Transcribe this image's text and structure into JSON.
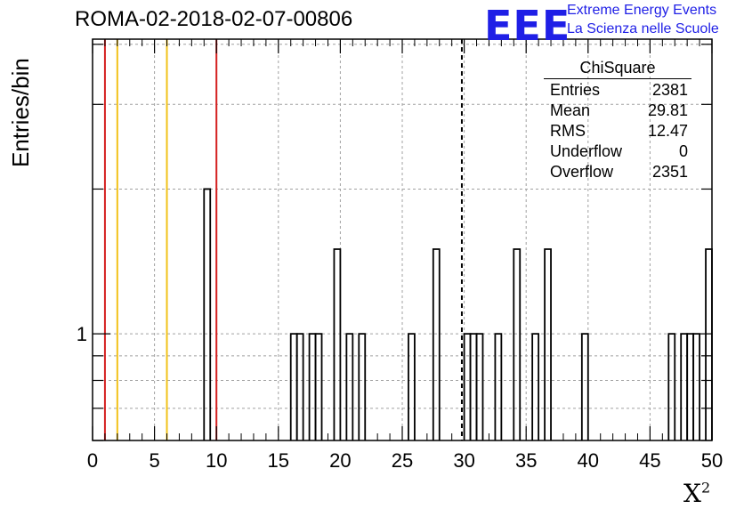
{
  "header": {
    "run_title": "ROMA-02-2018-02-07-00806",
    "logo_mark": "EEE",
    "logo_line1": "Extreme Energy Events",
    "logo_line2": "La Scienza nelle Scuole"
  },
  "axes": {
    "ylabel": "Entries/bin",
    "xlabel_base": "X",
    "xlabel_sup": "2"
  },
  "stats_box": {
    "title": "ChiSquare",
    "rows": [
      {
        "label": "Entries",
        "value": "2381"
      },
      {
        "label": "Mean",
        "value": "29.81"
      },
      {
        "label": "RMS",
        "value": "12.47"
      },
      {
        "label": "Underflow",
        "value": "0"
      },
      {
        "label": "Overflow",
        "value": "2351"
      }
    ]
  },
  "colors": {
    "red_line": "#d42020",
    "yellow_line": "#f2c21a",
    "logo_blue": "#1f1fe6",
    "grid": "#a0a0a0"
  },
  "chart_data": {
    "type": "histogram",
    "title": "ROMA-02-2018-02-07-00806",
    "xlabel": "X²",
    "ylabel": "Entries/bin",
    "xlim": [
      0,
      50
    ],
    "y_scale": "log",
    "ylim": [
      0.6,
      4.1
    ],
    "bin_width": 0.5,
    "grid": true,
    "x_ticks": [
      0,
      5,
      10,
      15,
      20,
      25,
      30,
      35,
      40,
      45,
      50
    ],
    "y_tick_labels": [
      {
        "value": 1,
        "label": "1"
      }
    ],
    "bins": [
      {
        "x": 9.0,
        "count": 2
      },
      {
        "x": 16.0,
        "count": 1
      },
      {
        "x": 16.5,
        "count": 1
      },
      {
        "x": 17.5,
        "count": 1
      },
      {
        "x": 18.0,
        "count": 1
      },
      {
        "x": 19.5,
        "count": 1.5
      },
      {
        "x": 20.5,
        "count": 1
      },
      {
        "x": 21.5,
        "count": 1
      },
      {
        "x": 25.5,
        "count": 1
      },
      {
        "x": 27.5,
        "count": 1.5
      },
      {
        "x": 30.0,
        "count": 1
      },
      {
        "x": 30.5,
        "count": 1
      },
      {
        "x": 31.0,
        "count": 1
      },
      {
        "x": 32.5,
        "count": 1
      },
      {
        "x": 34.0,
        "count": 1.5
      },
      {
        "x": 35.5,
        "count": 1
      },
      {
        "x": 36.5,
        "count": 1.5
      },
      {
        "x": 39.5,
        "count": 1
      },
      {
        "x": 46.5,
        "count": 1
      },
      {
        "x": 47.5,
        "count": 1
      },
      {
        "x": 48.0,
        "count": 1
      },
      {
        "x": 48.5,
        "count": 1
      },
      {
        "x": 49.5,
        "count": 1.5
      }
    ],
    "vertical_lines": [
      {
        "x": 1,
        "color": "#d42020",
        "style": "solid"
      },
      {
        "x": 2,
        "color": "#f2c21a",
        "style": "solid"
      },
      {
        "x": 6,
        "color": "#f2c21a",
        "style": "solid"
      },
      {
        "x": 10,
        "color": "#d42020",
        "style": "solid"
      },
      {
        "x": 29.81,
        "color": "#000000",
        "style": "dashed"
      }
    ]
  }
}
